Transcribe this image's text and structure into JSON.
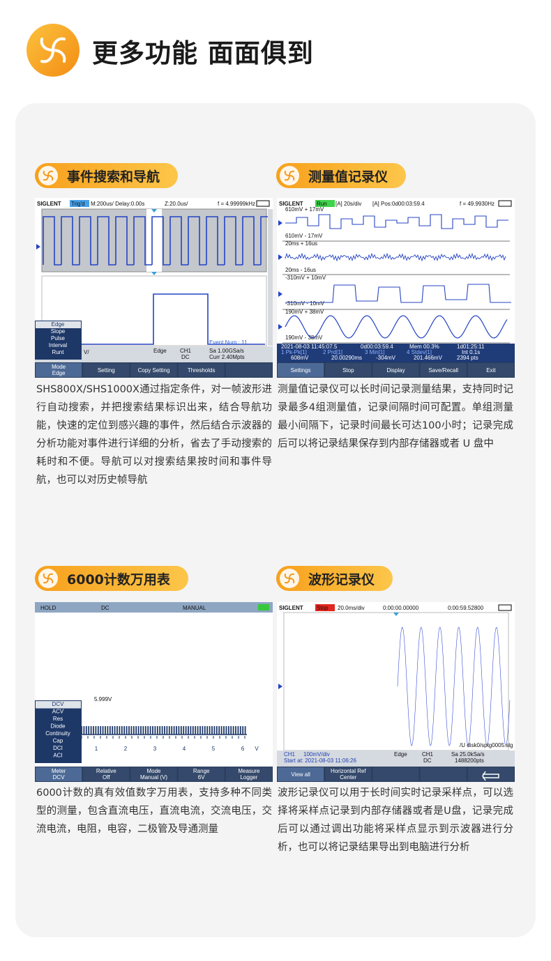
{
  "header": {
    "title": "更多功能 面面俱到"
  },
  "sections": [
    {
      "title": "事件搜索和导航",
      "description": "SHS800X/SHS1000X通过指定条件，对一帧波形进行自动搜索，并把搜索结果标识出来，结合导航功能，快速的定位到感兴趣的事件，然后结合示波器的分析功能对事件进行详细的分析，省去了手动搜索的耗时和不便。导航可以对搜索结果按时间和事件导航，也可以对历史帧导航",
      "screen": {
        "top": [
          "SIGLENT",
          "Trig'd",
          "M:200us/ Delay:0.00s",
          "Z:20.0us/",
          "f = 4.99999kHz"
        ],
        "labels": [
          "Event Num : 11"
        ],
        "menu": [
          "Edge",
          "Slope",
          "Pulse",
          "Interval",
          "Runt"
        ],
        "info": [
          "V/",
          "Edge",
          "CH1",
          "DC",
          "Sa 1.00GSa/s",
          "Curr 2.40Mpts"
        ],
        "softkeys": [
          [
            "Mode",
            "Edge"
          ],
          [
            "Setting"
          ],
          [
            "Copy Setting"
          ],
          [
            "Thresholds"
          ]
        ]
      }
    },
    {
      "title": "测量值记录仪",
      "description": "测量值记录仪可以长时间记录测量结果，支持同时记录最多4组测量值，记录间隔时间可配置。单组测量最小间隔下，记录时间最长可达100小时；记录完成后可以将记录结果保存到内部存储器或者 U 盘中",
      "screen": {
        "top": [
          "SIGLENT",
          "Run",
          "[A] 20s/div",
          "[A] Pos:0d00:03:59.4",
          "f = 49.9930Hz"
        ],
        "labels": [
          "610mV + 17mV",
          "610mV - 17mV",
          "20ms + 16us",
          "20ms - 16us",
          "-310mV + 10mV",
          "-310mV - 10mV",
          "190mV + 38mV",
          "190mV - 38mV"
        ],
        "info": [
          "2021-08-03 11:45:07.5",
          "0d00:03:59.4",
          "Mem 00.3%",
          "1d01:25:11",
          "Int 0.1s",
          "2394 pts",
          "1 Pk-Pk[1]",
          "608mV",
          "2 Prd[1]",
          "20.00290ms",
          "3 Min[1]",
          "-304mV",
          "4 Stdev[1]",
          "201.466mV"
        ],
        "softkeys": [
          [
            "Settings"
          ],
          [
            "Stop"
          ],
          [
            "Display"
          ],
          [
            "Save/Recall"
          ],
          [
            "Exit"
          ]
        ]
      }
    },
    {
      "title": "6000计数万用表",
      "description": "6000计数的真有效值数字万用表，支持多种不同类型的测量，包含直流电压，直流电流，交流电压，交流电流，电阻，电容，二极管及导通测量",
      "screen": {
        "top": [
          "HOLD",
          "DC",
          "MANUAL"
        ],
        "labels": [
          "5.999V",
          "1",
          "2",
          "3",
          "4",
          "5",
          "6",
          "V"
        ],
        "menu": [
          "DCV",
          "ACV",
          "Res",
          "Diode",
          "Continuity",
          "Cap",
          "DCI",
          "ACI"
        ],
        "softkeys": [
          [
            "Meter",
            "DCV"
          ],
          [
            "Relative",
            "Off"
          ],
          [
            "Mode",
            "Manual (V)"
          ],
          [
            "Range",
            "6V"
          ],
          [
            "Measure",
            "Logger"
          ]
        ]
      }
    },
    {
      "title": "波形记录仪",
      "description": "波形记录仪可以用于长时间实时记录采样点，可以选择将采样点记录到内部存储器或者是U盘，记录完成后可以通过调出功能将采样点显示到示波器进行分析，也可以将记录结果导出到电脑进行分析",
      "screen": {
        "top": [
          "SIGLENT",
          "Stop",
          "20.0ms/div",
          "0:00:00.00000",
          "0:00:59.52800"
        ],
        "labels": [
          "/U disk0/sptg0005.slg"
        ],
        "info": [
          "CH1",
          "100mV/div",
          "Start at: 2021-08-03 11:06:26",
          "Edge",
          "CH1",
          "DC",
          "Sa 25.0kSa/s",
          "1488200pts"
        ],
        "softkeys": [
          [
            "View all"
          ],
          [
            "Horizontal Ref",
            "Center"
          ]
        ]
      }
    }
  ]
}
